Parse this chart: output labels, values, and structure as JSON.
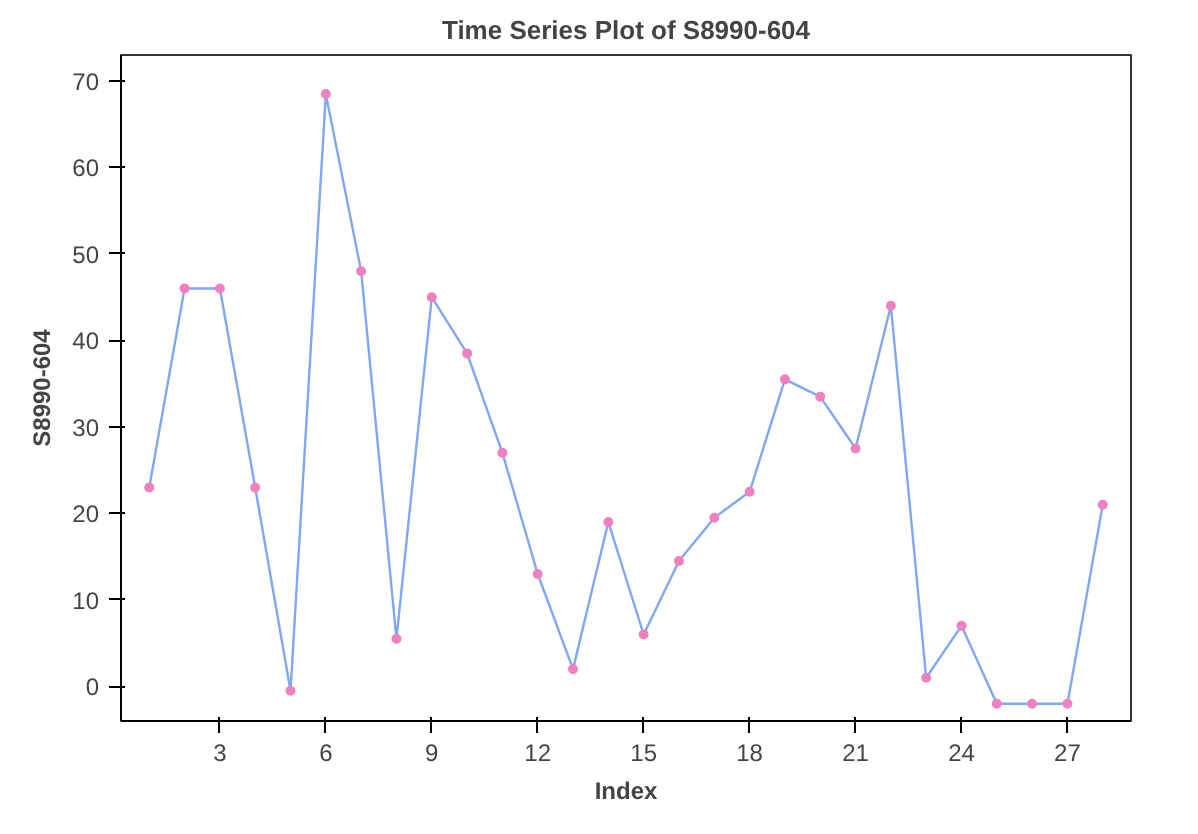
{
  "chart_data": {
    "type": "line",
    "title": "Time Series Plot of S8990-604",
    "xlabel": "Index",
    "ylabel": "S8990-604",
    "x": [
      1,
      2,
      3,
      4,
      5,
      6,
      7,
      8,
      9,
      10,
      11,
      12,
      13,
      14,
      15,
      16,
      17,
      18,
      19,
      20,
      21,
      22,
      23,
      24,
      25,
      26,
      27,
      28
    ],
    "series": [
      {
        "color": "#7fa8f0",
        "values": [
          23,
          46,
          46,
          23,
          -0.5,
          68.5,
          48,
          5.5,
          45,
          38.5,
          27,
          13,
          2,
          19,
          6,
          14.5,
          19.5,
          22.5,
          35.5,
          33.5,
          27.5,
          44,
          1,
          7,
          -2,
          -2,
          -2,
          21
        ]
      }
    ],
    "xlim": [
      0.2,
      28.8
    ],
    "ylim": [
      -4,
      73
    ],
    "xticks": [
      3,
      6,
      9,
      12,
      15,
      18,
      21,
      24,
      27
    ],
    "yticks": [
      0,
      10,
      20,
      30,
      40,
      50,
      60,
      70
    ],
    "marker": "circle",
    "line_style": "solid",
    "grid": false
  }
}
